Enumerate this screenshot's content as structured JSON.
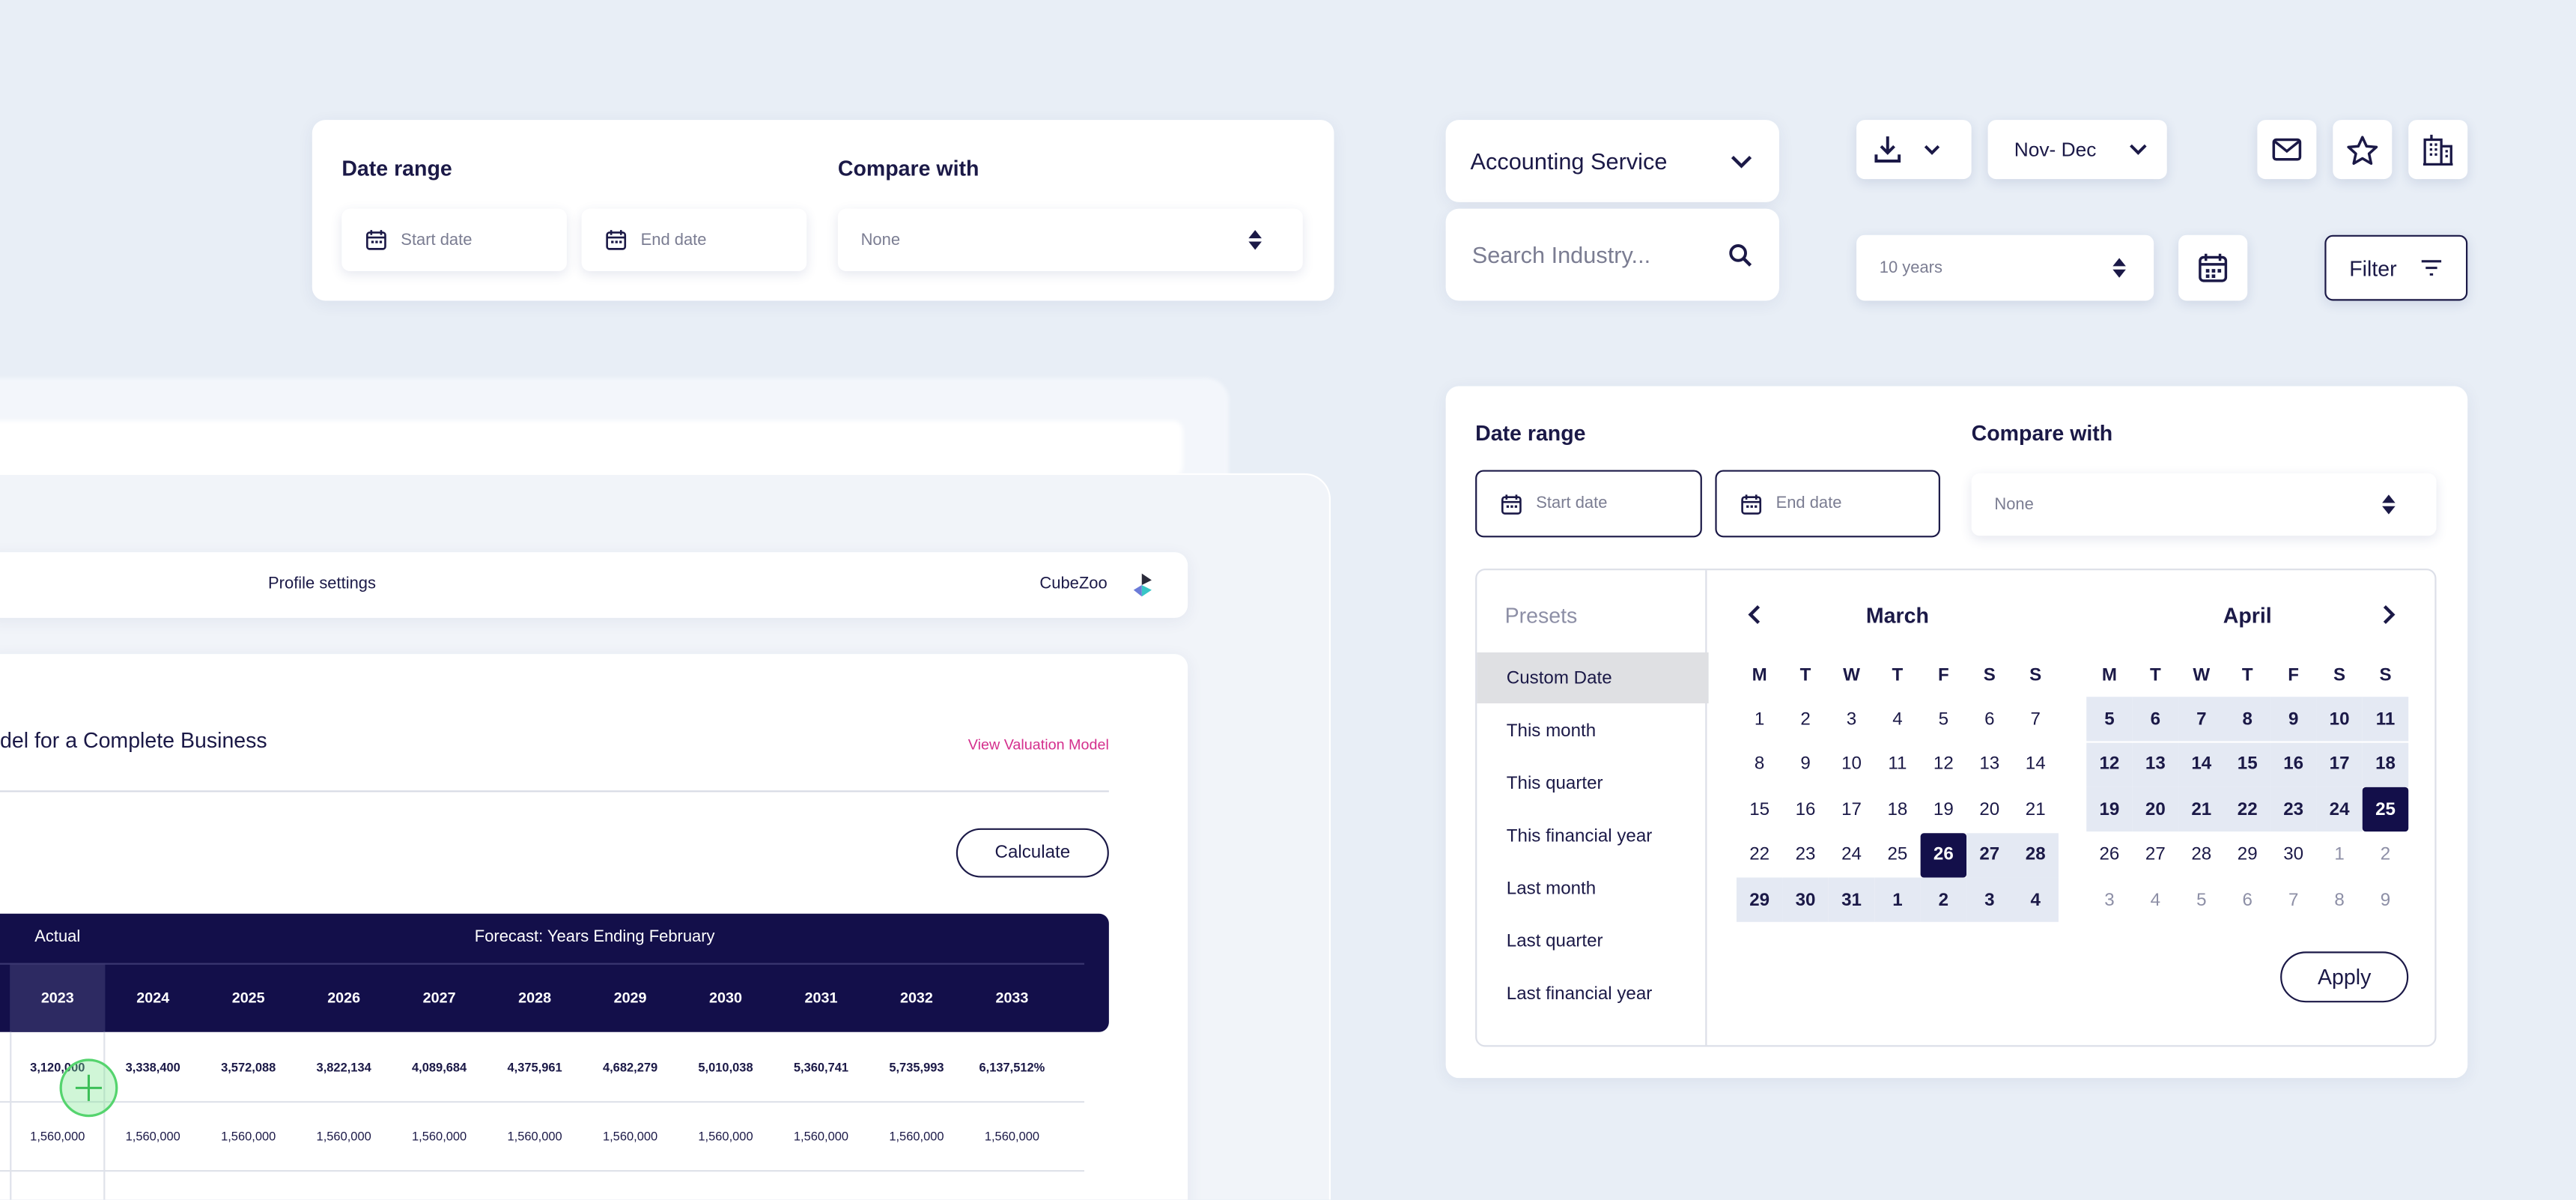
{
  "date_range_card": {
    "label": "Date range",
    "start": "Start date",
    "end": "End date",
    "compare_label": "Compare with",
    "compare_value": "None"
  },
  "toolbar": {
    "service": "Accounting Service",
    "search": "Search Industry...",
    "period": "Nov- Dec",
    "years": "10 years",
    "filter": "Filter"
  },
  "date_picker": {
    "label": "Date range",
    "start": "Start date",
    "end": "End date",
    "compare_label": "Compare with",
    "compare_value": "None",
    "presets": {
      "title": "Presets",
      "items": [
        "Custom Date",
        "This month",
        "This quarter",
        "This financial year",
        "Last month",
        "Last quarter",
        "Last financial year"
      ]
    },
    "months": [
      {
        "name": "March",
        "weekdays": [
          "M",
          "T",
          "W",
          "T",
          "F",
          "S",
          "S"
        ],
        "days": [
          [
            1,
            2,
            3,
            4,
            5,
            6,
            7
          ],
          [
            8,
            9,
            10,
            11,
            12,
            13,
            14
          ],
          [
            15,
            16,
            17,
            18,
            19,
            20,
            21
          ],
          [
            22,
            23,
            24,
            25,
            26,
            27,
            28
          ],
          [
            29,
            30,
            31,
            1,
            2,
            3,
            4
          ]
        ]
      },
      {
        "name": "April",
        "weekdays": [
          "M",
          "T",
          "W",
          "T",
          "F",
          "S",
          "S"
        ],
        "days": [
          [
            5,
            6,
            7,
            8,
            9,
            10,
            11
          ],
          [
            12,
            13,
            14,
            15,
            16,
            17,
            18
          ],
          [
            19,
            20,
            21,
            22,
            23,
            24,
            25
          ],
          [
            26,
            27,
            28,
            29,
            30,
            1,
            2
          ],
          [
            3,
            4,
            5,
            6,
            7,
            8,
            9
          ]
        ]
      }
    ],
    "apply": "Apply"
  },
  "background": {
    "profile": "Profile settings",
    "brand": "CubeZoo",
    "heading": "del for a Complete Business",
    "link": "View Valuation Model",
    "calculate": "Calculate",
    "table": {
      "group_actual": "Actual",
      "group_forecast": "Forecast: Years Ending February",
      "years": [
        "2023",
        "2024",
        "2025",
        "2026",
        "2027",
        "2028",
        "2029",
        "2030",
        "2031",
        "2032",
        "2033"
      ],
      "rows": [
        [
          "3,120,000",
          "3,338,400",
          "3,572,088",
          "3,822,134",
          "4,089,684",
          "4,375,961",
          "4,682,279",
          "5,010,038",
          "5,360,741",
          "5,735,993",
          "6,137,512%"
        ],
        [
          "1,560,000",
          "1,560,000",
          "1,560,000",
          "1,560,000",
          "1,560,000",
          "1,560,000",
          "1,560,000",
          "1,560,000",
          "1,560,000",
          "1,560,000",
          "1,560,000"
        ]
      ]
    }
  }
}
